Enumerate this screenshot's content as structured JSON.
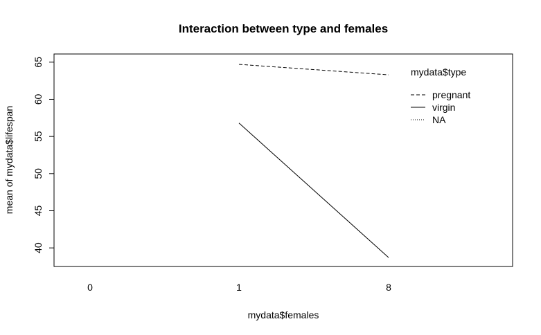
{
  "chart_data": {
    "type": "line",
    "title": "Interaction between type and females",
    "xlabel": "mydata$females",
    "ylabel": "mean of  mydata$lifespan",
    "categories": [
      "0",
      "1",
      "8"
    ],
    "ylim": [
      37.5,
      66.1
    ],
    "yticks": [
      40,
      45,
      50,
      55,
      60,
      65
    ],
    "grid": false,
    "legend": {
      "title": "mydata$type",
      "placement": "top-right",
      "entries": [
        "pregnant",
        "virgin",
        "NA"
      ]
    },
    "series": [
      {
        "name": "pregnant",
        "linestyle": "dashed",
        "values": [
          null,
          64.7,
          63.3
        ]
      },
      {
        "name": "virgin",
        "linestyle": "solid",
        "values": [
          null,
          56.8,
          38.7
        ]
      },
      {
        "name": "NA",
        "linestyle": "dotted",
        "values": [
          null,
          null,
          null
        ]
      }
    ],
    "colors": {
      "line": "#000000",
      "background": "#ffffff"
    }
  }
}
